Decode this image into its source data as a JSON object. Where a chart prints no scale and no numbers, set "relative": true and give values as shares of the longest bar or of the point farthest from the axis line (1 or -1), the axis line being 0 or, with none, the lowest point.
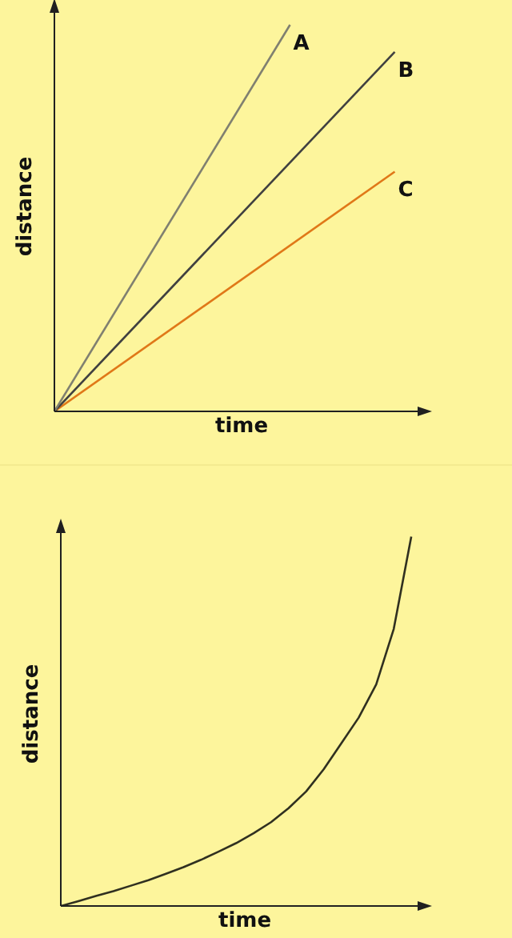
{
  "chart_data": [
    {
      "type": "line",
      "xlabel": "time",
      "ylabel": "distance",
      "relative": true,
      "categories": [
        null,
        null,
        null,
        null,
        null,
        null,
        null,
        null,
        null,
        null,
        null,
        null,
        null,
        null
      ],
      "series": [
        {
          "name": "A",
          "color": "#808070",
          "values": [
            0,
            null,
            null,
            null,
            null,
            null,
            null,
            null,
            null,
            1,
            null,
            null,
            null,
            null
          ]
        },
        {
          "name": "B",
          "color": "#404040",
          "values": [
            0,
            null,
            null,
            null,
            null,
            null,
            null,
            null,
            null,
            null,
            null,
            null,
            null,
            0.93
          ]
        },
        {
          "name": "C",
          "color": "#e07818",
          "values": [
            0,
            null,
            null,
            null,
            null,
            null,
            null,
            null,
            null,
            null,
            null,
            null,
            null,
            0.62
          ]
        }
      ]
    },
    {
      "type": "line",
      "xlabel": "time",
      "ylabel": "distance",
      "relative": true,
      "categories": [
        null,
        null,
        null,
        null,
        null,
        null,
        null,
        null,
        null,
        null,
        null,
        null,
        null,
        null,
        null,
        null,
        null,
        null,
        null,
        null,
        null
      ],
      "series": [
        {
          "color": "#303020",
          "values": [
            0,
            0.013,
            0.027,
            0.04,
            0.055,
            0.07,
            0.087,
            0.105,
            0.125,
            0.147,
            0.17,
            0.197,
            0.227,
            0.265,
            0.31,
            0.37,
            0.44,
            0.51,
            0.6,
            0.75,
            1
          ]
        }
      ]
    }
  ]
}
